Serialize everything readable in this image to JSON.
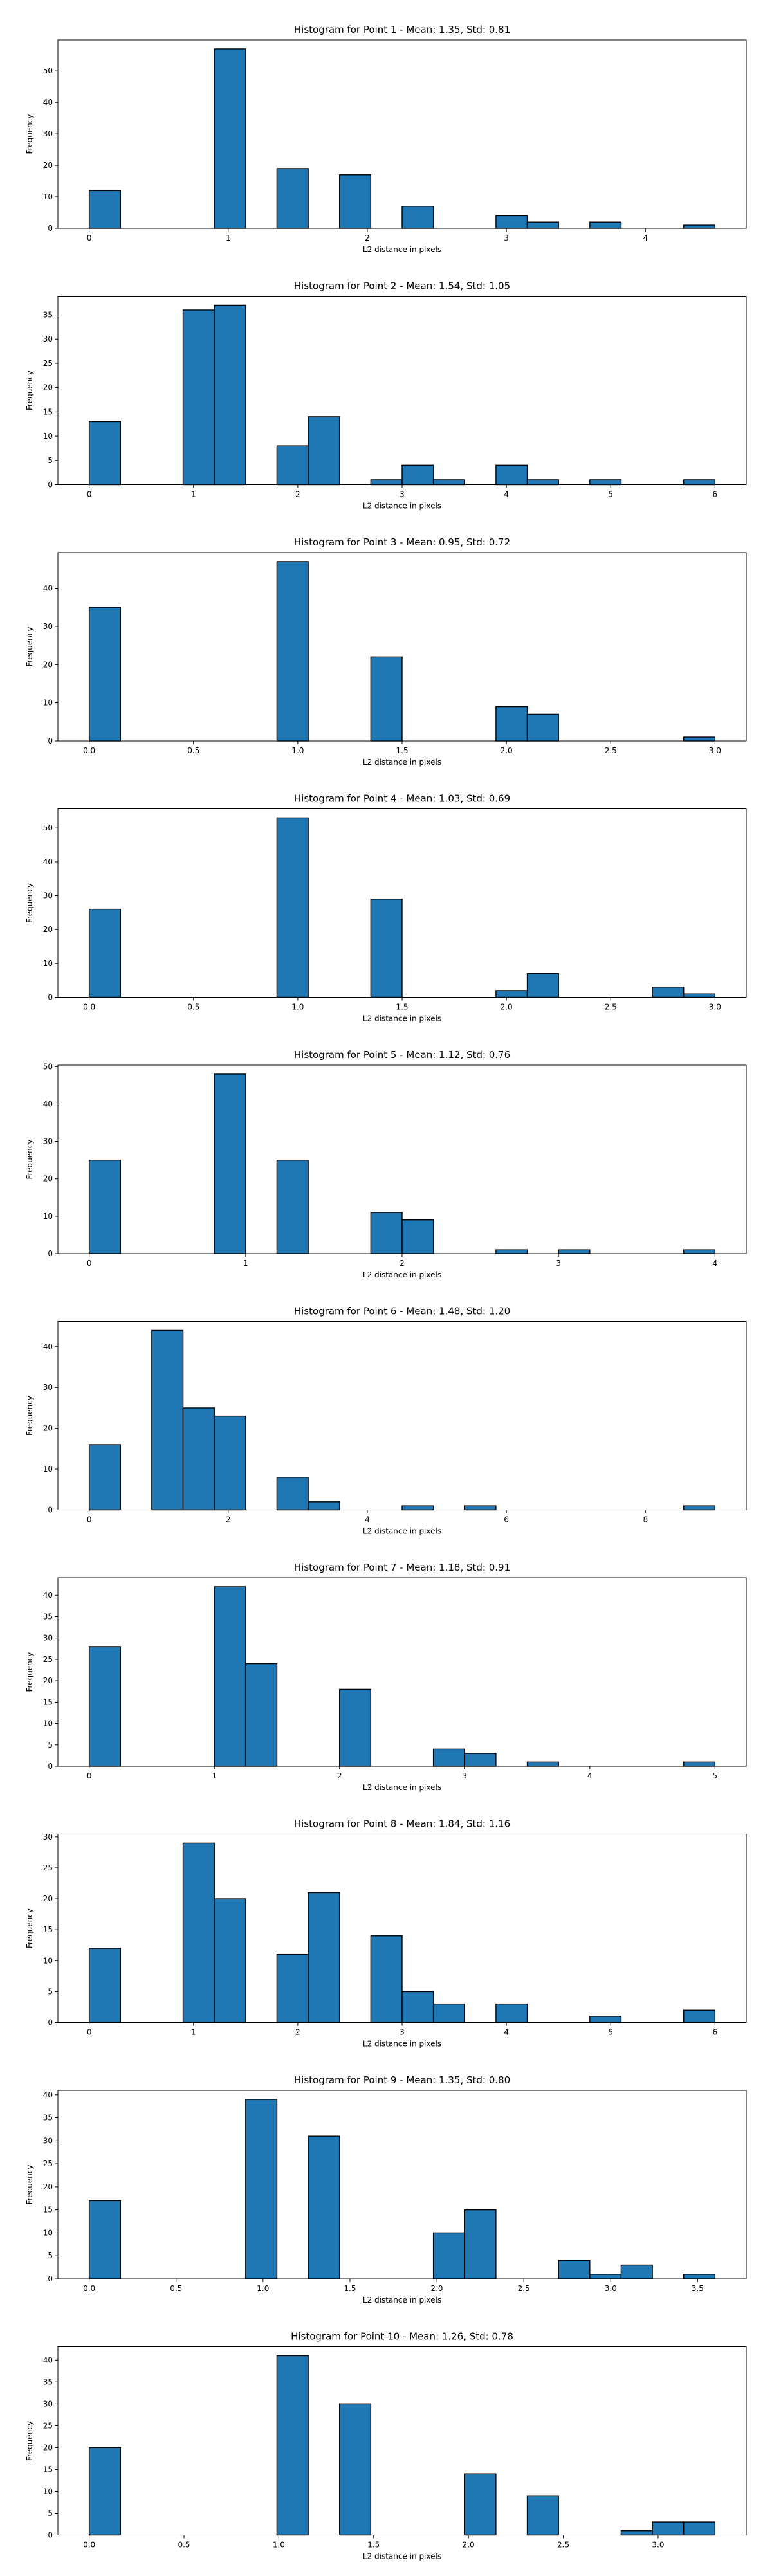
{
  "chart_data": [
    {
      "type": "bar",
      "title": "Histogram for Point 1 - Mean: 1.35, Std: 0.81",
      "xlabel": "L2 distance in pixels",
      "ylabel": "Frequency",
      "xlim": [
        -0.225,
        4.725
      ],
      "ylim": [
        0,
        59.85
      ],
      "bin_width": 0.225,
      "x_ticks": [
        0,
        1,
        2,
        3,
        4
      ],
      "x_tick_labels": [
        "0",
        "1",
        "2",
        "3",
        "4"
      ],
      "y_ticks": [
        0,
        10,
        20,
        30,
        40,
        50
      ],
      "bars": [
        {
          "x": 0.0,
          "y": 12
        },
        {
          "x": 0.9,
          "y": 57
        },
        {
          "x": 1.35,
          "y": 19
        },
        {
          "x": 1.8,
          "y": 17
        },
        {
          "x": 2.25,
          "y": 7
        },
        {
          "x": 2.925,
          "y": 4
        },
        {
          "x": 3.15,
          "y": 2
        },
        {
          "x": 3.6,
          "y": 2
        },
        {
          "x": 4.275,
          "y": 1
        }
      ]
    },
    {
      "type": "bar",
      "title": "Histogram for Point 2 - Mean: 1.54, Std: 1.05",
      "xlabel": "L2 distance in pixels",
      "ylabel": "Frequency",
      "xlim": [
        -0.3,
        6.3
      ],
      "ylim": [
        0,
        38.85
      ],
      "bin_width": 0.3,
      "x_ticks": [
        0,
        1,
        2,
        3,
        4,
        5,
        6
      ],
      "x_tick_labels": [
        "0",
        "1",
        "2",
        "3",
        "4",
        "5",
        "6"
      ],
      "y_ticks": [
        0,
        5,
        10,
        15,
        20,
        25,
        30,
        35
      ],
      "bars": [
        {
          "x": 0.0,
          "y": 13
        },
        {
          "x": 0.9,
          "y": 36
        },
        {
          "x": 1.2,
          "y": 37
        },
        {
          "x": 1.8,
          "y": 8
        },
        {
          "x": 2.1,
          "y": 14
        },
        {
          "x": 2.7,
          "y": 1
        },
        {
          "x": 3.0,
          "y": 4
        },
        {
          "x": 3.3,
          "y": 1
        },
        {
          "x": 3.9,
          "y": 4
        },
        {
          "x": 4.2,
          "y": 1
        },
        {
          "x": 4.8,
          "y": 1
        },
        {
          "x": 5.7,
          "y": 1
        }
      ]
    },
    {
      "type": "bar",
      "title": "Histogram for Point 3 - Mean: 0.95, Std: 0.72",
      "xlabel": "L2 distance in pixels",
      "ylabel": "Frequency",
      "xlim": [
        -0.15,
        3.15
      ],
      "ylim": [
        0,
        49.35
      ],
      "bin_width": 0.15,
      "x_ticks": [
        0.0,
        0.5,
        1.0,
        1.5,
        2.0,
        2.5,
        3.0
      ],
      "x_tick_labels": [
        "0.0",
        "0.5",
        "1.0",
        "1.5",
        "2.0",
        "2.5",
        "3.0"
      ],
      "y_ticks": [
        0,
        10,
        20,
        30,
        40
      ],
      "bars": [
        {
          "x": 0.0,
          "y": 35
        },
        {
          "x": 0.9,
          "y": 47
        },
        {
          "x": 1.35,
          "y": 22
        },
        {
          "x": 1.95,
          "y": 9
        },
        {
          "x": 2.1,
          "y": 7
        },
        {
          "x": 2.85,
          "y": 1
        }
      ]
    },
    {
      "type": "bar",
      "title": "Histogram for Point 4 - Mean: 1.03, Std: 0.69",
      "xlabel": "L2 distance in pixels",
      "ylabel": "Frequency",
      "xlim": [
        -0.15,
        3.15
      ],
      "ylim": [
        0,
        55.65
      ],
      "bin_width": 0.15,
      "x_ticks": [
        0.0,
        0.5,
        1.0,
        1.5,
        2.0,
        2.5,
        3.0
      ],
      "x_tick_labels": [
        "0.0",
        "0.5",
        "1.0",
        "1.5",
        "2.0",
        "2.5",
        "3.0"
      ],
      "y_ticks": [
        0,
        10,
        20,
        30,
        40,
        50
      ],
      "bars": [
        {
          "x": 0.0,
          "y": 26
        },
        {
          "x": 0.9,
          "y": 53
        },
        {
          "x": 1.35,
          "y": 29
        },
        {
          "x": 1.95,
          "y": 2
        },
        {
          "x": 2.1,
          "y": 7
        },
        {
          "x": 2.7,
          "y": 3
        },
        {
          "x": 2.85,
          "y": 1
        }
      ]
    },
    {
      "type": "bar",
      "title": "Histogram for Point 5 - Mean: 1.12, Std: 0.76",
      "xlabel": "L2 distance in pixels",
      "ylabel": "Frequency",
      "xlim": [
        -0.2,
        4.2
      ],
      "ylim": [
        0,
        50.4
      ],
      "bin_width": 0.2,
      "x_ticks": [
        0,
        1,
        2,
        3,
        4
      ],
      "x_tick_labels": [
        "0",
        "1",
        "2",
        "3",
        "4"
      ],
      "y_ticks": [
        0,
        10,
        20,
        30,
        40,
        50
      ],
      "bars": [
        {
          "x": 0.0,
          "y": 25
        },
        {
          "x": 0.8,
          "y": 48
        },
        {
          "x": 1.2,
          "y": 25
        },
        {
          "x": 1.8,
          "y": 11
        },
        {
          "x": 2.0,
          "y": 9
        },
        {
          "x": 2.6,
          "y": 1
        },
        {
          "x": 3.0,
          "y": 1
        },
        {
          "x": 3.8,
          "y": 1
        }
      ]
    },
    {
      "type": "bar",
      "title": "Histogram for Point 6 - Mean: 1.48, Std: 1.20",
      "xlabel": "L2 distance in pixels",
      "ylabel": "Frequency",
      "xlim": [
        -0.45,
        9.45
      ],
      "ylim": [
        0,
        46.2
      ],
      "bin_width": 0.45,
      "x_ticks": [
        0,
        2,
        4,
        6,
        8
      ],
      "x_tick_labels": [
        "0",
        "2",
        "4",
        "6",
        "8"
      ],
      "y_ticks": [
        0,
        10,
        20,
        30,
        40
      ],
      "bars": [
        {
          "x": 0.0,
          "y": 16
        },
        {
          "x": 0.9,
          "y": 44
        },
        {
          "x": 1.35,
          "y": 25
        },
        {
          "x": 1.8,
          "y": 23
        },
        {
          "x": 2.7,
          "y": 8
        },
        {
          "x": 3.15,
          "y": 2
        },
        {
          "x": 4.5,
          "y": 1
        },
        {
          "x": 5.4,
          "y": 1
        },
        {
          "x": 8.55,
          "y": 1
        }
      ]
    },
    {
      "type": "bar",
      "title": "Histogram for Point 7 - Mean: 1.18, Std: 0.91",
      "xlabel": "L2 distance in pixels",
      "ylabel": "Frequency",
      "xlim": [
        -0.25,
        5.25
      ],
      "ylim": [
        0,
        44.1
      ],
      "bin_width": 0.25,
      "x_ticks": [
        0,
        1,
        2,
        3,
        4,
        5
      ],
      "x_tick_labels": [
        "0",
        "1",
        "2",
        "3",
        "4",
        "5"
      ],
      "y_ticks": [
        0,
        5,
        10,
        15,
        20,
        25,
        30,
        35,
        40
      ],
      "bars": [
        {
          "x": 0.0,
          "y": 28
        },
        {
          "x": 1.0,
          "y": 42
        },
        {
          "x": 1.25,
          "y": 24
        },
        {
          "x": 2.0,
          "y": 18
        },
        {
          "x": 2.75,
          "y": 4
        },
        {
          "x": 3.0,
          "y": 3
        },
        {
          "x": 3.5,
          "y": 1
        },
        {
          "x": 4.75,
          "y": 1
        }
      ]
    },
    {
      "type": "bar",
      "title": "Histogram for Point 8 - Mean: 1.84, Std: 1.16",
      "xlabel": "L2 distance in pixels",
      "ylabel": "Frequency",
      "xlim": [
        -0.3,
        6.3
      ],
      "ylim": [
        0,
        30.45
      ],
      "bin_width": 0.3,
      "x_ticks": [
        0,
        1,
        2,
        3,
        4,
        5,
        6
      ],
      "x_tick_labels": [
        "0",
        "1",
        "2",
        "3",
        "4",
        "5",
        "6"
      ],
      "y_ticks": [
        0,
        5,
        10,
        15,
        20,
        25,
        30
      ],
      "bars": [
        {
          "x": 0.0,
          "y": 12
        },
        {
          "x": 0.9,
          "y": 29
        },
        {
          "x": 1.2,
          "y": 20
        },
        {
          "x": 1.8,
          "y": 11
        },
        {
          "x": 2.1,
          "y": 21
        },
        {
          "x": 2.7,
          "y": 14
        },
        {
          "x": 3.0,
          "y": 5
        },
        {
          "x": 3.3,
          "y": 3
        },
        {
          "x": 3.9,
          "y": 3
        },
        {
          "x": 4.8,
          "y": 1
        },
        {
          "x": 5.7,
          "y": 2
        }
      ]
    },
    {
      "type": "bar",
      "title": "Histogram for Point 9 - Mean: 1.35, Std: 0.80",
      "xlabel": "L2 distance in pixels",
      "ylabel": "Frequency",
      "xlim": [
        -0.18,
        3.78
      ],
      "ylim": [
        0,
        40.95
      ],
      "bin_width": 0.18,
      "x_ticks": [
        0.0,
        0.5,
        1.0,
        1.5,
        2.0,
        2.5,
        3.0,
        3.5
      ],
      "x_tick_labels": [
        "0.0",
        "0.5",
        "1.0",
        "1.5",
        "2.0",
        "2.5",
        "3.0",
        "3.5"
      ],
      "y_ticks": [
        0,
        5,
        10,
        15,
        20,
        25,
        30,
        35,
        40
      ],
      "bars": [
        {
          "x": 0.0,
          "y": 17
        },
        {
          "x": 0.9,
          "y": 39
        },
        {
          "x": 1.26,
          "y": 31
        },
        {
          "x": 1.98,
          "y": 10
        },
        {
          "x": 2.16,
          "y": 15
        },
        {
          "x": 2.7,
          "y": 4
        },
        {
          "x": 2.88,
          "y": 1
        },
        {
          "x": 3.06,
          "y": 3
        },
        {
          "x": 3.42,
          "y": 1
        }
      ]
    },
    {
      "type": "bar",
      "title": "Histogram for Point 10 - Mean: 1.26, Std: 0.78",
      "xlabel": "L2 distance in pixels",
      "ylabel": "Frequency",
      "xlim": [
        -0.165,
        3.465
      ],
      "ylim": [
        0,
        43.05
      ],
      "bin_width": 0.165,
      "x_ticks": [
        0.0,
        0.5,
        1.0,
        1.5,
        2.0,
        2.5,
        3.0
      ],
      "x_tick_labels": [
        "0.0",
        "0.5",
        "1.0",
        "1.5",
        "2.0",
        "2.5",
        "3.0"
      ],
      "y_ticks": [
        0,
        5,
        10,
        15,
        20,
        25,
        30,
        35,
        40
      ],
      "bars": [
        {
          "x": 0.0,
          "y": 20
        },
        {
          "x": 0.99,
          "y": 41
        },
        {
          "x": 1.32,
          "y": 30
        },
        {
          "x": 1.98,
          "y": 14
        },
        {
          "x": 2.31,
          "y": 9
        },
        {
          "x": 2.805,
          "y": 1
        },
        {
          "x": 2.97,
          "y": 3
        },
        {
          "x": 3.135,
          "y": 3
        }
      ]
    }
  ],
  "colors": {
    "bar_fill": "#1f77b4",
    "bar_edge": "#000000",
    "axes": "#000000",
    "background": "#ffffff"
  }
}
